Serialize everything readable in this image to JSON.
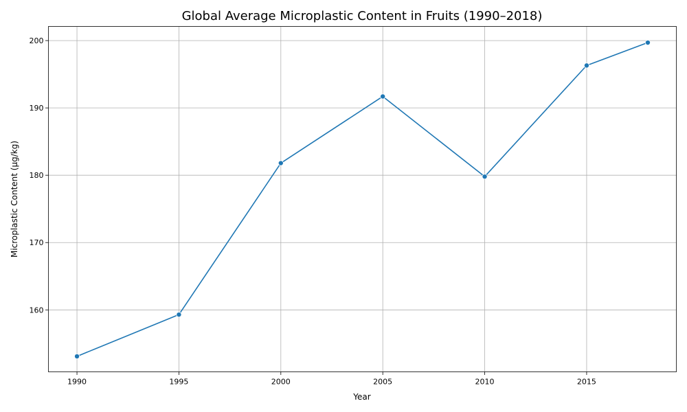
{
  "chart_data": {
    "type": "line",
    "title": "Global Average Microplastic Content in Fruits (1990–2018)",
    "xlabel": "Year",
    "ylabel": "Microplastic Content (µg/kg)",
    "x": [
      1990,
      1995,
      2000,
      2005,
      2010,
      2015,
      2018
    ],
    "series": [
      {
        "values": [
          153.1,
          159.3,
          181.8,
          191.7,
          179.8,
          196.3,
          199.7
        ]
      }
    ],
    "xticks": [
      1990,
      1995,
      2000,
      2005,
      2010,
      2015
    ],
    "yticks": [
      160,
      170,
      180,
      190,
      200
    ],
    "xlim": [
      1988.6,
      2019.4
    ],
    "ylim": [
      150.8,
      202.1
    ],
    "grid": true,
    "line_color": "#1f77b4",
    "marker": "circle"
  }
}
